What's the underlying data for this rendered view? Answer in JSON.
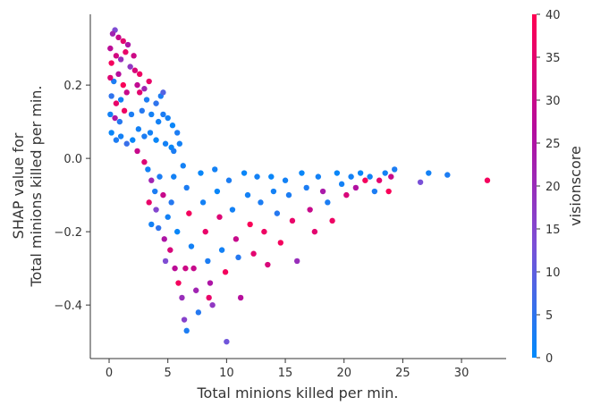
{
  "chart_data": {
    "type": "scatter",
    "title": "",
    "xlabel": "Total minions killed per min.",
    "ylabel_lines": [
      "SHAP value for",
      "Total minions killed per min."
    ],
    "xlim": [
      -1.6,
      33.8
    ],
    "ylim": [
      -0.546,
      0.393
    ],
    "xticks": [
      0,
      5,
      10,
      15,
      20,
      25,
      30
    ],
    "yticks": [
      -0.4,
      -0.2,
      0.0,
      0.2
    ],
    "ytick_labels": [
      "−0.4",
      "−0.2",
      "0.0",
      "0.2"
    ],
    "grid": false,
    "colorbar": {
      "label": "visionscore",
      "range": [
        0,
        40
      ],
      "ticks": [
        0,
        5,
        10,
        15,
        20,
        25,
        30,
        35,
        40
      ],
      "colors": [
        "#008afb",
        "#7c4fd6",
        "#b40d9e",
        "#ff0052"
      ]
    },
    "points": [
      [
        0.1,
        0.3,
        28
      ],
      [
        0.3,
        0.34,
        22
      ],
      [
        0.5,
        0.35,
        14
      ],
      [
        0.8,
        0.33,
        30
      ],
      [
        1.2,
        0.32,
        35
      ],
      [
        1.6,
        0.31,
        25
      ],
      [
        0.2,
        0.26,
        38
      ],
      [
        0.6,
        0.28,
        32
      ],
      [
        1.0,
        0.27,
        20
      ],
      [
        1.4,
        0.29,
        36
      ],
      [
        0.1,
        0.22,
        34
      ],
      [
        0.4,
        0.21,
        3
      ],
      [
        0.8,
        0.23,
        27
      ],
      [
        1.2,
        0.2,
        39
      ],
      [
        1.8,
        0.25,
        18
      ],
      [
        2.2,
        0.24,
        33
      ],
      [
        0.2,
        0.17,
        5
      ],
      [
        0.6,
        0.15,
        36
      ],
      [
        1.0,
        0.16,
        2
      ],
      [
        1.5,
        0.18,
        30
      ],
      [
        0.1,
        0.12,
        2
      ],
      [
        0.5,
        0.11,
        25
      ],
      [
        0.9,
        0.1,
        4
      ],
      [
        1.3,
        0.13,
        37
      ],
      [
        1.9,
        0.12,
        3
      ],
      [
        2.4,
        0.2,
        29
      ],
      [
        0.2,
        0.07,
        1
      ],
      [
        0.6,
        0.05,
        3
      ],
      [
        1.0,
        0.06,
        2
      ],
      [
        1.5,
        0.04,
        6
      ],
      [
        2.0,
        0.05,
        1
      ],
      [
        2.5,
        0.08,
        2
      ],
      [
        3.0,
        0.06,
        3
      ],
      [
        3.5,
        0.07,
        2
      ],
      [
        4.0,
        0.05,
        1
      ],
      [
        2.8,
        0.13,
        4
      ],
      [
        3.2,
        0.16,
        3
      ],
      [
        3.6,
        0.12,
        2
      ],
      [
        4.0,
        0.15,
        5
      ],
      [
        4.4,
        0.17,
        3
      ],
      [
        2.6,
        0.18,
        35
      ],
      [
        3.0,
        0.19,
        22
      ],
      [
        3.4,
        0.21,
        36
      ],
      [
        2.1,
        0.28,
        31
      ],
      [
        2.6,
        0.23,
        37
      ],
      [
        4.2,
        0.1,
        2
      ],
      [
        4.6,
        0.12,
        3
      ],
      [
        5.0,
        0.11,
        2
      ],
      [
        5.4,
        0.09,
        1
      ],
      [
        5.8,
        0.07,
        3
      ],
      [
        4.8,
        0.04,
        2
      ],
      [
        5.3,
        0.03,
        1
      ],
      [
        6.0,
        0.04,
        2
      ],
      [
        4.6,
        0.18,
        9
      ],
      [
        5.5,
        0.02,
        3
      ],
      [
        2.4,
        0.02,
        30
      ],
      [
        3.0,
        -0.01,
        34
      ],
      [
        3.3,
        -0.03,
        2
      ],
      [
        3.6,
        -0.06,
        22
      ],
      [
        3.9,
        -0.09,
        3
      ],
      [
        3.4,
        -0.12,
        36
      ],
      [
        4.0,
        -0.14,
        15
      ],
      [
        4.3,
        -0.05,
        3
      ],
      [
        4.6,
        -0.1,
        30
      ],
      [
        4.2,
        -0.19,
        5
      ],
      [
        4.7,
        -0.22,
        25
      ],
      [
        5.0,
        -0.16,
        2
      ],
      [
        5.2,
        -0.25,
        33
      ],
      [
        5.5,
        -0.05,
        2
      ],
      [
        5.6,
        -0.3,
        28
      ],
      [
        5.9,
        -0.34,
        38
      ],
      [
        5.3,
        -0.12,
        4
      ],
      [
        5.8,
        -0.2,
        1
      ],
      [
        6.2,
        -0.38,
        20
      ],
      [
        6.4,
        -0.44,
        16
      ],
      [
        6.6,
        -0.47,
        3
      ],
      [
        6.3,
        -0.02,
        2
      ],
      [
        6.6,
        -0.08,
        3
      ],
      [
        6.8,
        -0.15,
        38
      ],
      [
        7.0,
        -0.24,
        2
      ],
      [
        7.2,
        -0.3,
        30
      ],
      [
        7.4,
        -0.36,
        22
      ],
      [
        7.6,
        -0.42,
        4
      ],
      [
        7.8,
        -0.04,
        1
      ],
      [
        8.0,
        -0.12,
        2
      ],
      [
        8.2,
        -0.2,
        36
      ],
      [
        8.4,
        -0.28,
        3
      ],
      [
        8.6,
        -0.34,
        25
      ],
      [
        8.8,
        -0.4,
        18
      ],
      [
        9.0,
        -0.03,
        2
      ],
      [
        9.2,
        -0.09,
        1
      ],
      [
        9.4,
        -0.16,
        34
      ],
      [
        9.6,
        -0.25,
        2
      ],
      [
        9.9,
        -0.31,
        38
      ],
      [
        10.0,
        -0.5,
        12
      ],
      [
        10.2,
        -0.06,
        3
      ],
      [
        10.5,
        -0.14,
        2
      ],
      [
        10.8,
        -0.22,
        30
      ],
      [
        11.0,
        -0.27,
        4
      ],
      [
        11.2,
        -0.38,
        27
      ],
      [
        11.5,
        -0.04,
        1
      ],
      [
        11.8,
        -0.1,
        2
      ],
      [
        12.0,
        -0.18,
        39
      ],
      [
        12.3,
        -0.26,
        35
      ],
      [
        12.6,
        -0.05,
        2
      ],
      [
        12.9,
        -0.12,
        3
      ],
      [
        13.2,
        -0.2,
        37
      ],
      [
        13.5,
        -0.29,
        33
      ],
      [
        13.8,
        -0.05,
        1
      ],
      [
        14.0,
        -0.09,
        2
      ],
      [
        14.3,
        -0.15,
        4
      ],
      [
        14.6,
        -0.23,
        38
      ],
      [
        15.0,
        -0.06,
        2
      ],
      [
        15.3,
        -0.1,
        3
      ],
      [
        15.6,
        -0.17,
        36
      ],
      [
        16.0,
        -0.28,
        20
      ],
      [
        16.4,
        -0.04,
        1
      ],
      [
        16.8,
        -0.08,
        3
      ],
      [
        17.1,
        -0.14,
        30
      ],
      [
        17.5,
        -0.2,
        35
      ],
      [
        17.8,
        -0.05,
        2
      ],
      [
        18.2,
        -0.09,
        24
      ],
      [
        18.6,
        -0.12,
        3
      ],
      [
        19.0,
        -0.17,
        37
      ],
      [
        19.4,
        -0.04,
        1
      ],
      [
        19.8,
        -0.07,
        2
      ],
      [
        20.2,
        -0.1,
        33
      ],
      [
        20.6,
        -0.05,
        2
      ],
      [
        21.0,
        -0.08,
        26
      ],
      [
        21.4,
        -0.04,
        1
      ],
      [
        21.8,
        -0.06,
        38
      ],
      [
        22.2,
        -0.05,
        2
      ],
      [
        22.6,
        -0.09,
        3
      ],
      [
        23.0,
        -0.06,
        35
      ],
      [
        23.5,
        -0.04,
        2
      ],
      [
        24.0,
        -0.05,
        30
      ],
      [
        23.8,
        -0.09,
        39
      ],
      [
        24.3,
        -0.03,
        3
      ],
      [
        26.5,
        -0.065,
        13
      ],
      [
        27.2,
        -0.04,
        2
      ],
      [
        28.8,
        -0.045,
        3
      ],
      [
        32.2,
        -0.06,
        38
      ],
      [
        3.6,
        -0.18,
        2
      ],
      [
        4.8,
        -0.28,
        14
      ],
      [
        6.5,
        -0.3,
        31
      ],
      [
        8.5,
        -0.38,
        36
      ]
    ]
  }
}
